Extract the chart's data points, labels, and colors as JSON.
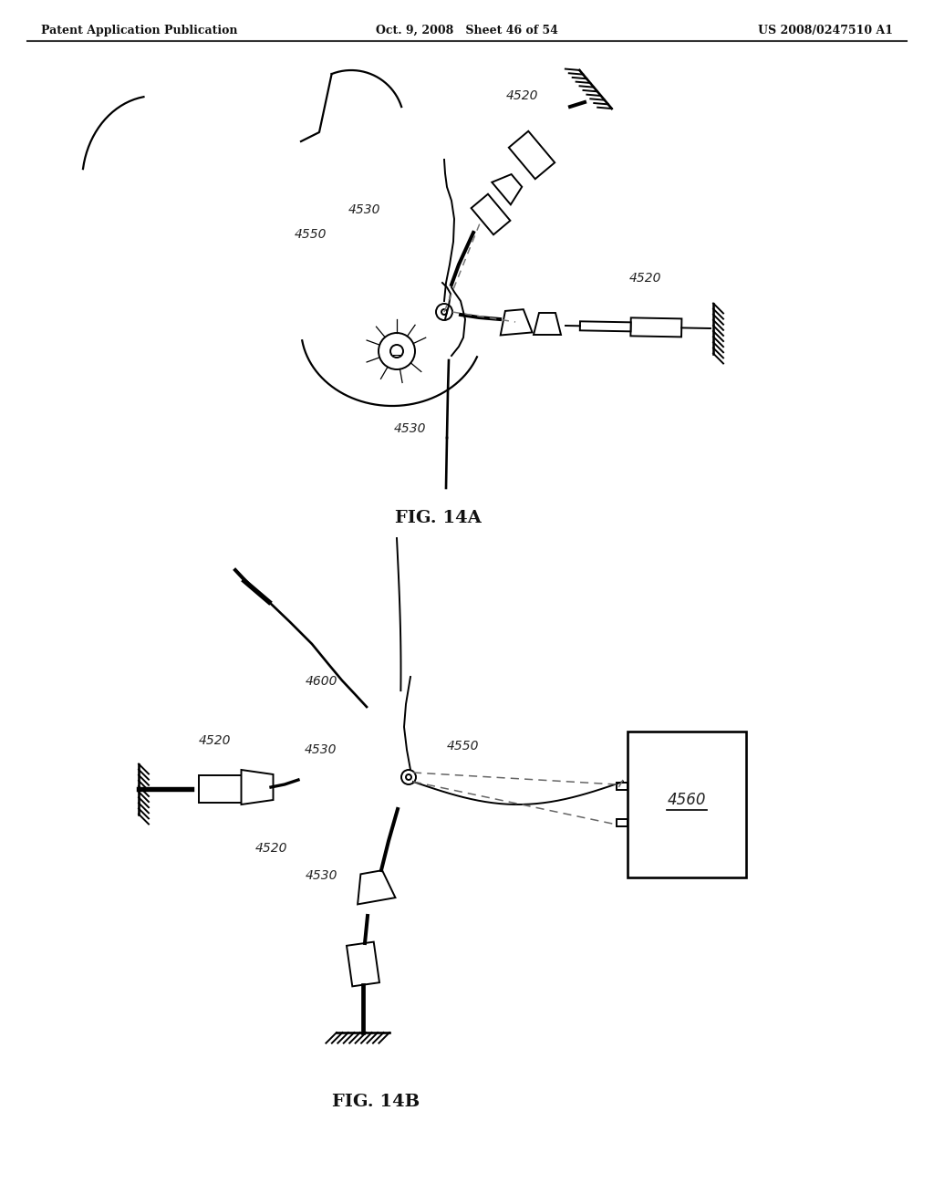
{
  "background_color": "#ffffff",
  "header_left": "Patent Application Publication",
  "header_center": "Oct. 9, 2008   Sheet 46 of 54",
  "header_right": "US 2008/0247510 A1",
  "fig14a_label": "FIG. 14A",
  "fig14b_label": "FIG. 14B",
  "line_color": "#000000",
  "gray_line": "#555555",
  "header_fontsize": 9,
  "caption_fontsize": 14,
  "label_fontsize": 10
}
